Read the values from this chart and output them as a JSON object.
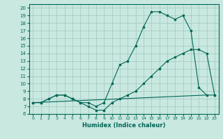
{
  "xlabel": "Humidex (Indice chaleur)",
  "bg_color": "#c8e8e0",
  "line_color": "#006655",
  "grid_color": "#a0c8c0",
  "xlim": [
    -0.5,
    23.5
  ],
  "ylim": [
    6,
    20.5
  ],
  "xticks": [
    0,
    1,
    2,
    3,
    4,
    5,
    6,
    7,
    8,
    9,
    10,
    11,
    12,
    13,
    14,
    15,
    16,
    17,
    18,
    19,
    20,
    21,
    22,
    23
  ],
  "yticks": [
    6,
    7,
    8,
    9,
    10,
    11,
    12,
    13,
    14,
    15,
    16,
    17,
    18,
    19,
    20
  ],
  "line1_x": [
    0,
    1,
    2,
    3,
    4,
    5,
    6,
    7,
    8,
    9,
    10,
    11,
    12,
    13,
    14,
    15,
    16,
    17,
    18,
    19,
    20,
    21,
    22,
    23
  ],
  "line1_y": [
    7.5,
    7.5,
    8.0,
    8.5,
    8.5,
    8.0,
    7.5,
    7.5,
    7.0,
    7.5,
    10.0,
    12.5,
    13.0,
    15.0,
    17.5,
    19.5,
    19.5,
    19.0,
    18.5,
    19.0,
    17.0,
    9.5,
    8.5,
    8.5
  ],
  "line2_x": [
    0,
    1,
    2,
    3,
    4,
    5,
    6,
    7,
    8,
    9,
    10,
    11,
    12,
    13,
    14,
    15,
    16,
    17,
    18,
    19,
    20,
    21,
    22,
    23
  ],
  "line2_y": [
    7.5,
    7.5,
    8.0,
    8.5,
    8.5,
    8.0,
    7.5,
    7.0,
    6.5,
    6.5,
    7.5,
    8.0,
    8.5,
    9.0,
    10.0,
    11.0,
    12.0,
    13.0,
    13.5,
    14.0,
    14.5,
    14.5,
    14.0,
    8.5
  ],
  "line3_x": [
    0,
    22
  ],
  "line3_y": [
    7.5,
    8.5
  ]
}
